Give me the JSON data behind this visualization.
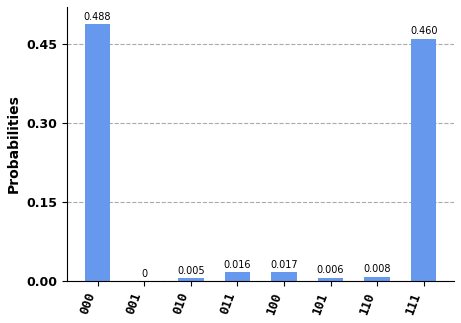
{
  "categories": [
    "000",
    "001",
    "010",
    "011",
    "100",
    "101",
    "110",
    "111"
  ],
  "values": [
    0.488,
    0.0,
    0.005,
    0.016,
    0.017,
    0.006,
    0.008,
    0.46
  ],
  "bar_color": "#6699ee",
  "ylabel": "Probabilities",
  "ylim": [
    0,
    0.52
  ],
  "yticks": [
    0.0,
    0.15,
    0.3,
    0.45
  ],
  "grid_color": "#aaaaaa",
  "bar_annotations": [
    "0.488",
    "0",
    "0.005",
    "0.016",
    "0.017",
    "0.006",
    "0.008",
    "0.460"
  ],
  "annotation_fontsize": 7,
  "ylabel_fontsize": 10,
  "tick_fontsize": 9,
  "xtick_rotation": 70,
  "bar_width": 0.55
}
